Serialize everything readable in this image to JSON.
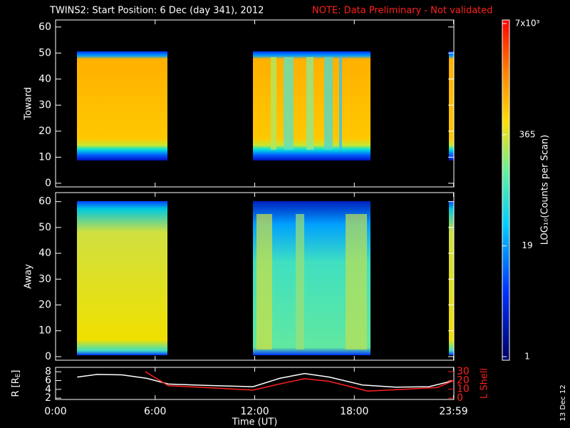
{
  "title": "TWINS2: Start Position:  6 Dec (day 341), 2012",
  "note": "NOTE: Data Preliminary - Not validated",
  "side_label": "13 Dec 12",
  "colorbar": {
    "label": "LOG₁₀(Counts per Scan)",
    "log": true,
    "clim": [
      1,
      7000
    ],
    "ticks": [
      {
        "value": 7000,
        "label": "7x10³"
      },
      365,
      19,
      1
    ]
  },
  "chart_data": [
    {
      "type": "heatmap",
      "ylabel": "Toward",
      "ylim": [
        -1.4,
        62.7
      ],
      "yticks": [
        0,
        10,
        20,
        30,
        40,
        50,
        60
      ],
      "xlim": [
        0,
        24
      ],
      "xticks": [
        0,
        6,
        12,
        18,
        23.98
      ]
    },
    {
      "type": "heatmap",
      "ylabel": "Away",
      "ylim": [
        -1.4,
        63.5
      ],
      "yticks": [
        0,
        10,
        20,
        30,
        40,
        50,
        60
      ],
      "xlim": [
        0,
        24
      ],
      "xticks": [
        0,
        6,
        12,
        18,
        23.98
      ]
    },
    {
      "type": "line",
      "xlabel": "Time (UT)",
      "ylabel": "R [R",
      "ylabel_sub": "E",
      "ylabel_end": "]",
      "y2label": "L Shell",
      "xlim": [
        0,
        24
      ],
      "xticks": [
        {
          "value": 0,
          "label": "0:00"
        },
        {
          "value": 6,
          "label": "6:00"
        },
        {
          "value": 12,
          "label": "12:00"
        },
        {
          "value": 18,
          "label": "18:00"
        },
        {
          "value": 23.98,
          "label": "23:59"
        }
      ],
      "ylim": [
        1.7,
        9
      ],
      "yticks": [
        2,
        4,
        6,
        8
      ],
      "y2lim": [
        -1.6,
        34.9
      ],
      "y2ticks": [
        0,
        10,
        20,
        30
      ],
      "series": [
        {
          "name": "R",
          "color": "#ffffff",
          "x": [
            1.3,
            2.5,
            4,
            5.5,
            6.8,
            9,
            11.9,
            13.5,
            15,
            16.5,
            18.5,
            20.5,
            22.5,
            24
          ],
          "values": [
            6.8,
            7.4,
            7.3,
            6.5,
            5.2,
            4.9,
            4.6,
            6.5,
            7.6,
            6.8,
            5.0,
            4.5,
            4.6,
            6.0
          ]
        },
        {
          "name": "L Shell",
          "color": "#ff2020",
          "axis": "y2",
          "x": [
            5.4,
            6.8,
            9,
            11.9,
            13.5,
            15,
            16.5,
            18.8,
            21,
            23,
            24
          ],
          "values": [
            30,
            14,
            12,
            9,
            16,
            22,
            19,
            8,
            10,
            12,
            20
          ]
        }
      ]
    }
  ]
}
